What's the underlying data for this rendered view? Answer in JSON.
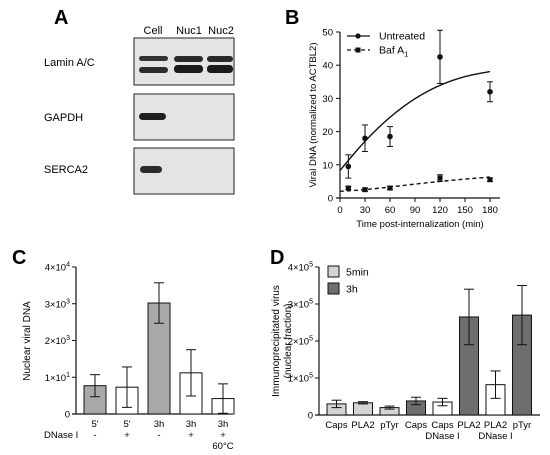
{
  "panels": {
    "A": {
      "letter": "A",
      "lanes": [
        "Cell",
        "Nuc1",
        "Nuc2"
      ],
      "rows": [
        "Lamin A/C",
        "GAPDH",
        "SERCA2"
      ]
    },
    "B": {
      "letter": "B"
    },
    "C": {
      "letter": "C"
    },
    "D": {
      "letter": "D"
    }
  },
  "chart_data": [
    {
      "panel": "B",
      "type": "scatter",
      "xlabel": "Time post-internalization (min)",
      "ylabel": "Viral DNA (normalized to ACTBL2)",
      "xlim": [
        0,
        180
      ],
      "ylim": [
        0,
        50
      ],
      "xticks": [
        0,
        30,
        60,
        90,
        120,
        150,
        180
      ],
      "yticks": [
        0,
        10,
        20,
        30,
        40,
        50
      ],
      "legend_position": "top-right",
      "series": [
        {
          "name": "Untreated",
          "marker": "circle",
          "line": "solid",
          "x": [
            10,
            30,
            60,
            120,
            180
          ],
          "y": [
            9.5,
            18,
            18.5,
            42.5,
            32
          ],
          "err": [
            3.5,
            4,
            3,
            8,
            3
          ],
          "fit_y": [
            8.3,
            17.3,
            24.5,
            30.1,
            34.1,
            36.7,
            38.1
          ]
        },
        {
          "name": "Baf A",
          "name_sub": "1",
          "marker": "square",
          "line": "dashed",
          "x": [
            10,
            30,
            60,
            120,
            180
          ],
          "y": [
            3,
            2.5,
            3,
            6,
            5.5
          ],
          "err": [
            0.5,
            0.5,
            0.5,
            1,
            0.5
          ],
          "fit_y": [
            2.0,
            2.5,
            3.3,
            4.2,
            5.0,
            5.7,
            6.3
          ]
        }
      ]
    },
    {
      "panel": "C",
      "type": "bar",
      "ylabel": "Nuclear viral DNA",
      "ylim": [
        0,
        400000
      ],
      "ytick_exp": [
        "0",
        "1",
        "3",
        "3",
        "4"
      ],
      "ytick_base": "×10",
      "yticks": [
        0,
        100000,
        200000,
        300000,
        400000
      ],
      "row_label": "DNase I",
      "categories": [
        {
          "time": "5'",
          "dnase": "-",
          "extra": "",
          "value": 77000,
          "err": 30000,
          "filled": true
        },
        {
          "time": "5'",
          "dnase": "+",
          "extra": "",
          "value": 73000,
          "err": 55000,
          "filled": false
        },
        {
          "time": "3h",
          "dnase": "-",
          "extra": "",
          "value": 302000,
          "err": 55000,
          "filled": true
        },
        {
          "time": "3h",
          "dnase": "+",
          "extra": "",
          "value": 112000,
          "err": 63000,
          "filled": false
        },
        {
          "time": "3h",
          "dnase": "+",
          "extra": "60°C",
          "value": 42000,
          "err": 40000,
          "filled": false
        }
      ]
    },
    {
      "panel": "D",
      "type": "bar",
      "ylabel": "Immunoprecipitated virus\n(nuclear fraction)",
      "ylim": [
        0,
        400000
      ],
      "ytick_exp": [
        "0",
        "5",
        "5",
        "5",
        "5"
      ],
      "yticks": [
        0,
        100000,
        200000,
        300000,
        400000
      ],
      "legend_position": "top-left",
      "legend": [
        {
          "name": "5min",
          "color": "#d4d4d4"
        },
        {
          "name": "3h",
          "color": "#6e6e6e"
        }
      ],
      "categories": [
        {
          "label": "Caps",
          "sub": "",
          "group": "5min",
          "value": 30000,
          "err": 10000,
          "filled": true
        },
        {
          "label": "PLA2",
          "sub": "",
          "group": "5min",
          "value": 33000,
          "err": 3000,
          "filled": true
        },
        {
          "label": "pTyr",
          "sub": "",
          "group": "5min",
          "value": 20000,
          "err": 4000,
          "filled": true
        },
        {
          "label": "Caps",
          "sub": "",
          "group": "3h",
          "value": 38000,
          "err": 10000,
          "filled": true
        },
        {
          "label": "Caps",
          "sub": "DNase I",
          "group": "3h",
          "value": 35000,
          "err": 10000,
          "filled": false
        },
        {
          "label": "PLA2",
          "sub": "",
          "group": "3h",
          "value": 265000,
          "err": 75000,
          "filled": true
        },
        {
          "label": "PLA2",
          "sub": "DNase I",
          "group": "3h",
          "value": 82000,
          "err": 37000,
          "filled": false
        },
        {
          "label": "pTyr",
          "sub": "",
          "group": "3h",
          "value": 270000,
          "err": 80000,
          "filled": true
        }
      ]
    }
  ]
}
